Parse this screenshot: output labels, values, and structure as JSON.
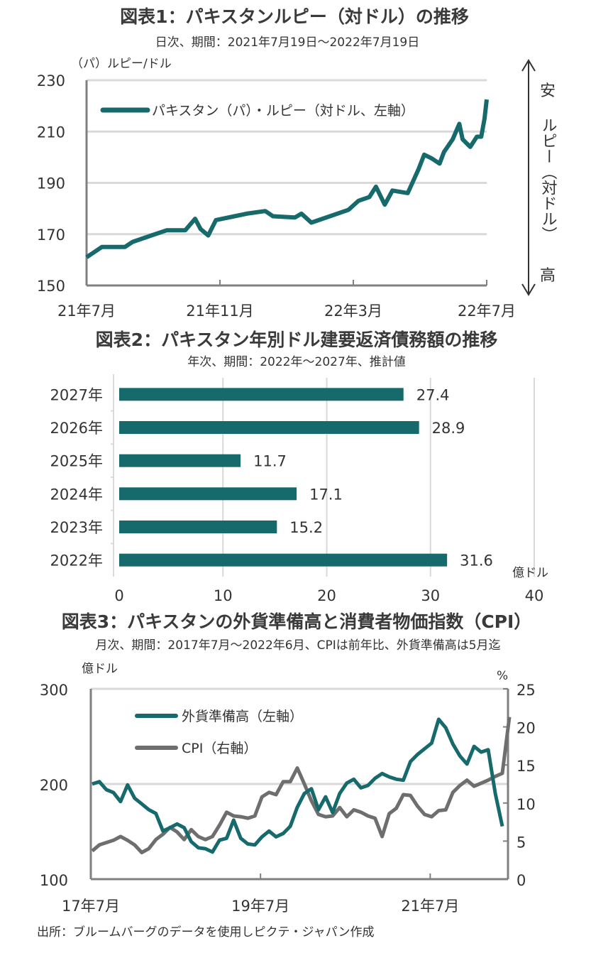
{
  "colors": {
    "teal": "#176a6c",
    "gray_series": "#6e6e6e",
    "grid": "#d9d9d9",
    "axis": "#808080"
  },
  "source": "出所：ブルームバーグのデータを使用しピクテ・ジャパン作成",
  "chart_data": [
    {
      "type": "line",
      "title": "図表1：パキスタンルピー（対ドル）の推移",
      "subtitle": "日次、期間：2021年7月19日～2022年7月19日",
      "ylabel": "（パ）ルピー/ドル",
      "ylim": [
        150,
        230
      ],
      "yticks": [
        150,
        170,
        190,
        210,
        230
      ],
      "xticks": [
        "21年7月",
        "21年11月",
        "22年3月",
        "22年7月"
      ],
      "grid": true,
      "legend_placement": "top-left",
      "side_annotation": {
        "top": "安",
        "middle": "ルピー（対ドル）",
        "bottom": "高"
      },
      "series": [
        {
          "name": "パキスタン（パ）・ルピー（対ドル、左軸）",
          "color": "#176a6c",
          "x": [
            "2021-07-19",
            "2021-08-02",
            "2021-08-23",
            "2021-08-30",
            "2021-09-16",
            "2021-09-30",
            "2021-10-17",
            "2021-10-26",
            "2021-10-31",
            "2021-11-07",
            "2021-11-14",
            "2021-12-01",
            "2021-12-12",
            "2021-12-29",
            "2022-01-05",
            "2022-01-25",
            "2022-01-31",
            "2022-02-09",
            "2022-02-26",
            "2022-03-15",
            "2022-03-24",
            "2022-04-03",
            "2022-04-09",
            "2022-04-17",
            "2022-04-24",
            "2022-05-08",
            "2022-05-18",
            "2022-05-23",
            "2022-05-30",
            "2022-06-06",
            "2022-06-10",
            "2022-06-18",
            "2022-06-24",
            "2022-06-27",
            "2022-07-04",
            "2022-07-10",
            "2022-07-14",
            "2022-07-17",
            "2022-07-19"
          ],
          "y": [
            161,
            165,
            165,
            167,
            169.5,
            171.5,
            171.5,
            176,
            172,
            169.5,
            175.5,
            177,
            178,
            179,
            177,
            176.5,
            178,
            174.5,
            177,
            179.5,
            183,
            184.5,
            188.5,
            181.5,
            187,
            186,
            195.5,
            201,
            199.5,
            197.5,
            202,
            207,
            213,
            207,
            204,
            208,
            208,
            215,
            222.5
          ]
        }
      ]
    },
    {
      "type": "bar",
      "orientation": "horizontal",
      "title": "図表2：パキスタン年別ドル建要返済債務額の推移",
      "subtitle": "年次、期間：2022年～2027年、推計値",
      "xlabel": "億ドル",
      "xlim": [
        0,
        40
      ],
      "xticks": [
        0,
        10,
        20,
        30,
        40
      ],
      "grid": true,
      "categories": [
        "2027年",
        "2026年",
        "2025年",
        "2024年",
        "2023年",
        "2022年"
      ],
      "values": [
        27.4,
        28.9,
        11.7,
        17.1,
        15.2,
        31.6
      ],
      "data_labels": [
        "27.4",
        "28.9",
        "11.7",
        "17.1",
        "15.2",
        "31.6"
      ],
      "color": "#176a6c"
    },
    {
      "type": "line",
      "title": "図表3：パキスタンの外貨準備高と消費者物価指数（CPI）",
      "subtitle": "月次、期間：2017年7月～2022年6月、CPIは前年比、外貨準備高は5月迄",
      "ylabel_left": "億ドル",
      "ylabel_right": "%",
      "ylim_left": [
        100,
        300
      ],
      "ylim_right": [
        0,
        25
      ],
      "yticks_left": [
        100,
        200,
        300
      ],
      "yticks_right": [
        0,
        5,
        10,
        15,
        20,
        25
      ],
      "xticks": [
        "17年7月",
        "19年7月",
        "21年7月"
      ],
      "x_start": "2017-07",
      "x_end": "2022-06",
      "grid": true,
      "legend_placement": "top-left",
      "series": [
        {
          "name": "外貨準備高（左軸）",
          "axis": "left",
          "color": "#176a6c",
          "values": [
            200,
            202.5,
            194,
            191,
            181.5,
            199,
            185,
            179,
            173,
            169,
            150.5,
            154,
            158,
            154,
            139.5,
            133,
            132,
            128.5,
            141,
            143,
            162,
            143,
            137,
            136,
            144.5,
            150.5,
            144.5,
            148,
            155.5,
            175.5,
            190,
            195,
            173,
            186.5,
            170,
            190,
            201,
            205,
            196,
            198.5,
            206,
            211,
            207.5,
            205,
            204,
            223.5,
            231,
            237,
            243,
            268,
            259,
            242,
            229.5,
            221,
            239.5,
            233.5,
            236,
            190,
            155.5
          ]
        },
        {
          "name": "CPI（右軸）",
          "axis": "right",
          "color": "#6e6e6e",
          "values": [
            3.7,
            4.5,
            4.8,
            5.1,
            5.6,
            5.1,
            4.5,
            3.5,
            4.0,
            5.2,
            5.9,
            6.8,
            6.2,
            5.2,
            6.5,
            5.6,
            5.2,
            5.6,
            7.1,
            8.8,
            8.3,
            8.2,
            8.0,
            8.3,
            10.8,
            11.4,
            11.1,
            12.8,
            12.8,
            14.6,
            12.5,
            10.3,
            8.5,
            8.2,
            8.3,
            9.4,
            8.2,
            9.1,
            8.8,
            8.3,
            8.0,
            5.6,
            8.6,
            9.3,
            11.1,
            11.0,
            9.6,
            8.5,
            8.2,
            9.0,
            9.1,
            11.4,
            12.3,
            13.0,
            12.2,
            12.6,
            13.0,
            13.5,
            13.9,
            21.3
          ]
        }
      ]
    }
  ]
}
